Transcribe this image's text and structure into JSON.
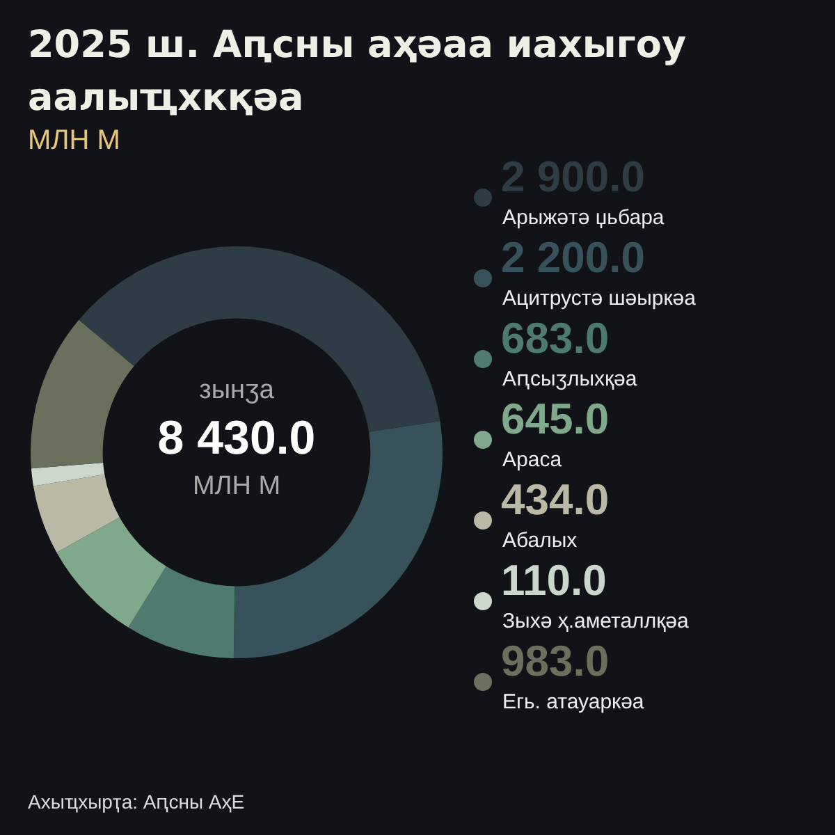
{
  "chart_data": {
    "type": "donut",
    "title": "2025 ш. Аԥсны аҳәаа иахыгоу аалыҵхкқәа",
    "subtitle": "МЛН М",
    "categories": [
      "Арыжәтә џьбара",
      "Ацитрустә шәыркәа",
      "Аԥсыӡлыхқәа",
      "Араса",
      "Абалых",
      "Зыхә ҳ.аметаллқәа",
      "Егь. атауаркәа"
    ],
    "values": [
      2900,
      2200,
      683,
      645,
      434,
      110,
      983
    ],
    "value_labels": [
      "2 900.0",
      "2 200.0",
      "683.0",
      "645.0",
      "434.0",
      "110.0",
      "983.0"
    ],
    "colors": [
      "#2e3d45",
      "#37525a",
      "#4e7a6f",
      "#80a88a",
      "#b9b9a5",
      "#ccd7cc",
      "#6b705c"
    ],
    "legend": "right",
    "annotations": [
      "зынӡа",
      "8 430.0",
      "МЛН М",
      "Ахыҵхырҭа: Аԥсны АҳЕ"
    ]
  }
}
